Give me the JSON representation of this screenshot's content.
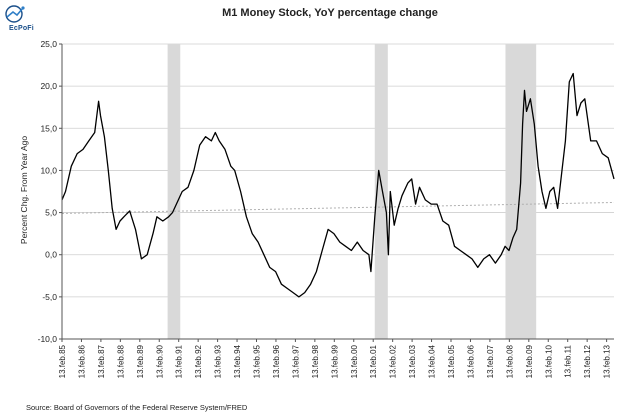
{
  "brand": {
    "logo_text": "EcPoFi"
  },
  "chart_data": {
    "type": "line",
    "title": "M1 Money Stock, YoY percentage change",
    "ylabel": "Percent Chg. From Year Ago",
    "xlabel": "",
    "source": "Source: Board of Governors of the Federal Reserve System/FRED",
    "ylim": [
      -10,
      25
    ],
    "xlim": [
      1985.12,
      2013.5
    ],
    "y_ticks": [
      -10,
      -5,
      0,
      5,
      10,
      15,
      20,
      25
    ],
    "y_tick_labels": [
      "-10,0",
      "-5,0",
      "0,0",
      "5,0",
      "10,0",
      "15,0",
      "20,0",
      "25,0"
    ],
    "x_ticks": [
      1985.12,
      1986.12,
      1987.12,
      1988.12,
      1989.12,
      1990.12,
      1991.12,
      1992.12,
      1993.12,
      1994.12,
      1995.12,
      1996.12,
      1997.12,
      1998.12,
      1999.12,
      2000.12,
      2001.12,
      2002.12,
      2003.12,
      2004.12,
      2005.12,
      2006.12,
      2007.12,
      2008.12,
      2009.12,
      2010.12,
      2011.12,
      2012.12,
      2013.12
    ],
    "x_tick_labels": [
      "13.feb.85",
      "13.feb.86",
      "13.feb.87",
      "13.feb.88",
      "13.feb.89",
      "13.feb.90",
      "13.feb.91",
      "13.feb.92",
      "13.feb.93",
      "13.feb.94",
      "13.feb.95",
      "13.feb.96",
      "13.feb.97",
      "13.feb.98",
      "13.feb.99",
      "13.feb.00",
      "13.feb.01",
      "13.feb.02",
      "13.feb.03",
      "13.feb.04",
      "13.feb.05",
      "13.feb.06",
      "13.feb.07",
      "13.feb.08",
      "13.feb.09",
      "13.feb.10",
      "13.feb.11",
      "13.feb.12",
      "13.feb.13"
    ],
    "grid": {
      "horizontal": true,
      "vertical": false
    },
    "recessions": [
      [
        1990.55,
        1991.2
      ],
      [
        2001.2,
        2001.87
      ],
      [
        2007.92,
        2009.5
      ]
    ],
    "trend": {
      "x": [
        1985.12,
        2013.5
      ],
      "y": [
        4.9,
        6.2
      ]
    },
    "series": [
      {
        "color": "#000000",
        "x": [
          1985.12,
          1985.3,
          1985.6,
          1985.9,
          1986.2,
          1986.5,
          1986.8,
          1987.0,
          1987.1,
          1987.3,
          1987.5,
          1987.7,
          1987.9,
          1988.1,
          1988.3,
          1988.6,
          1988.9,
          1989.2,
          1989.5,
          1989.8,
          1990.0,
          1990.3,
          1990.6,
          1990.8,
          1991.0,
          1991.3,
          1991.6,
          1991.9,
          1992.2,
          1992.5,
          1992.8,
          1993.0,
          1993.2,
          1993.5,
          1993.8,
          1994.0,
          1994.3,
          1994.6,
          1994.9,
          1995.2,
          1995.5,
          1995.8,
          1996.1,
          1996.4,
          1996.7,
          1997.0,
          1997.3,
          1997.6,
          1997.9,
          1998.2,
          1998.5,
          1998.8,
          1999.1,
          1999.4,
          1999.7,
          2000.0,
          2000.3,
          2000.6,
          2000.9,
          2001.0,
          2001.2,
          2001.4,
          2001.6,
          2001.8,
          2001.9,
          2002.0,
          2002.2,
          2002.4,
          2002.6,
          2002.9,
          2003.1,
          2003.3,
          2003.5,
          2003.8,
          2004.1,
          2004.4,
          2004.7,
          2005.0,
          2005.3,
          2005.6,
          2005.9,
          2006.2,
          2006.5,
          2006.8,
          2007.1,
          2007.4,
          2007.7,
          2007.9,
          2008.1,
          2008.3,
          2008.5,
          2008.7,
          2008.8,
          2008.9,
          2009.0,
          2009.2,
          2009.4,
          2009.6,
          2009.8,
          2010.0,
          2010.2,
          2010.4,
          2010.6,
          2010.8,
          2011.0,
          2011.2,
          2011.4,
          2011.6,
          2011.8,
          2012.0,
          2012.3,
          2012.6,
          2012.9,
          2013.2,
          2013.5
        ],
        "y": [
          6.5,
          7.5,
          10.5,
          12.0,
          12.5,
          13.5,
          14.5,
          18.2,
          16.5,
          14.0,
          10.0,
          5.5,
          3.0,
          4.0,
          4.5,
          5.2,
          3.0,
          -0.5,
          0.0,
          2.5,
          4.5,
          4.0,
          4.5,
          5.0,
          6.0,
          7.5,
          8.0,
          10.0,
          13.0,
          14.0,
          13.5,
          14.5,
          13.5,
          12.5,
          10.5,
          10.0,
          7.5,
          4.5,
          2.5,
          1.5,
          0.0,
          -1.5,
          -2.0,
          -3.5,
          -4.0,
          -4.5,
          -5.0,
          -4.5,
          -3.5,
          -2.0,
          0.5,
          3.0,
          2.5,
          1.5,
          1.0,
          0.5,
          1.5,
          0.5,
          0.0,
          -2.0,
          4.5,
          10.0,
          7.5,
          5.0,
          0.0,
          7.5,
          3.5,
          5.5,
          7.0,
          8.5,
          9.0,
          6.0,
          8.0,
          6.5,
          6.0,
          6.0,
          4.0,
          3.5,
          1.0,
          0.5,
          0.0,
          -0.5,
          -1.5,
          -0.5,
          0.0,
          -1.0,
          0.0,
          1.0,
          0.5,
          2.0,
          3.0,
          8.5,
          15.5,
          19.5,
          17.0,
          18.5,
          15.5,
          10.5,
          7.5,
          5.5,
          7.5,
          8.0,
          5.5,
          9.5,
          13.5,
          20.5,
          21.5,
          16.5,
          18.0,
          18.5,
          13.5,
          13.5,
          12.0,
          11.5,
          9.0
        ]
      }
    ]
  }
}
